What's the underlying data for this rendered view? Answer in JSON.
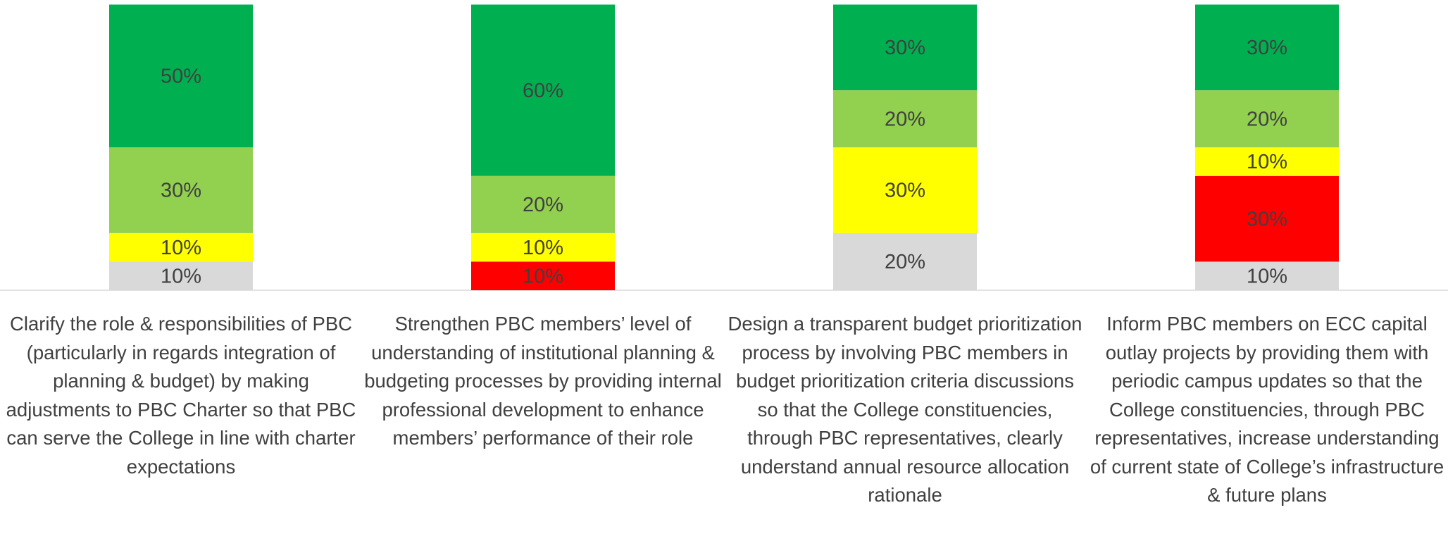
{
  "chart_data": {
    "type": "stacked_bar",
    "categories": [
      "Clarify the role & responsibilities of PBC (particularly in regards integration of planning & budget) by making adjustments to PBC Charter so that PBC can serve the College in line with charter expectations",
      "Strengthen PBC members’ level of understanding of institutional planning & budgeting processes by providing internal professional development to enhance members’ performance of their role",
      "Design a transparent budget prioritization process by involving PBC members in budget prioritization criteria discussions so that the College constituencies, through PBC representatives, clearly understand annual resource allocation rationale",
      "Inform PBC members on ECC capital outlay projects by providing them with periodic campus updates so that the College constituencies, through PBC representatives, increase understanding of current state of College’s infrastructure & future plans"
    ],
    "series": [
      {
        "color": "#d9d9d9",
        "values": [
          10,
          0,
          20,
          10
        ],
        "value_labels": [
          "10%",
          null,
          "20%",
          "10%"
        ]
      },
      {
        "color": "#ff0000",
        "values": [
          0,
          10,
          0,
          30
        ],
        "value_labels": [
          null,
          "10%",
          null,
          "30%"
        ]
      },
      {
        "color": "#ffff00",
        "values": [
          10,
          10,
          30,
          10
        ],
        "value_labels": [
          "10%",
          "10%",
          "30%",
          "10%"
        ]
      },
      {
        "color": "#92d050",
        "values": [
          30,
          20,
          20,
          20
        ],
        "value_labels": [
          "30%",
          "20%",
          "20%",
          "20%"
        ]
      },
      {
        "color": "#00b050",
        "values": [
          50,
          60,
          30,
          30
        ],
        "value_labels": [
          "50%",
          "60%",
          "30%",
          "30%"
        ]
      }
    ],
    "ylim": [
      0,
      100
    ]
  }
}
